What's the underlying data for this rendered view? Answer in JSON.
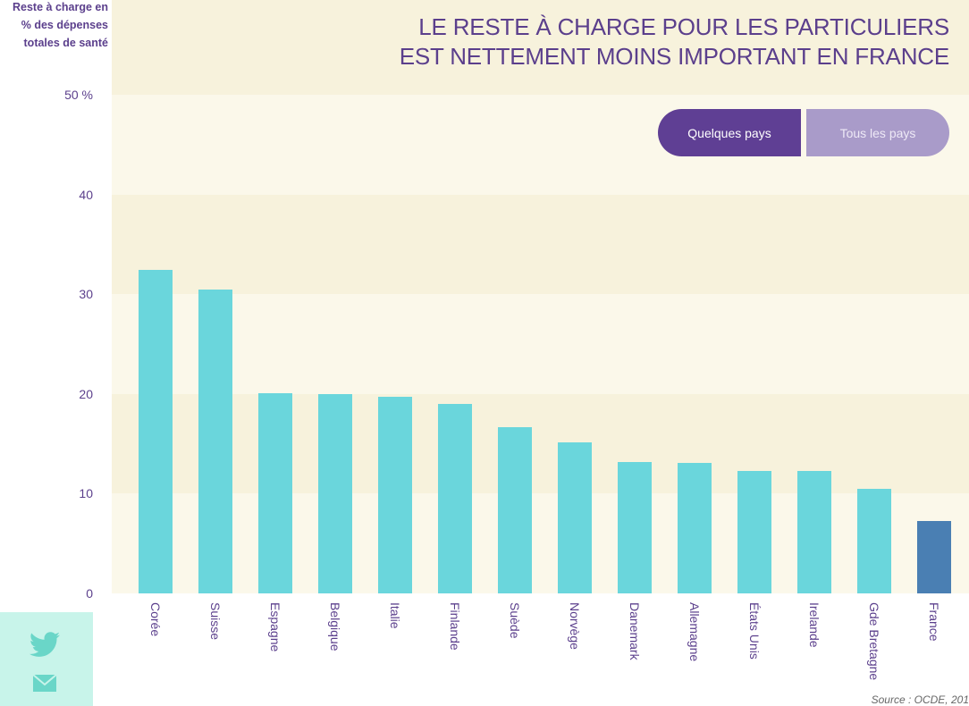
{
  "title_lines": [
    "LE RESTE À CHARGE POUR LES PARTICULIERS",
    "EST NETTEMENT MOINS IMPORTANT EN FRANCE"
  ],
  "buttons": {
    "some": "Quelques pays",
    "all": "Tous les pays"
  },
  "source": "Source : OCDE, 201",
  "colors": {
    "bar": "#6ad6dc",
    "highlight": "#4a7fb3",
    "accent": "#5b3f8c"
  },
  "icons": [
    "twitter-icon",
    "mail-icon"
  ],
  "chart_data": {
    "type": "bar",
    "ylabel_lines": [
      "Reste à charge en",
      "% des dépenses",
      "totales de santé"
    ],
    "ylim": [
      0,
      50
    ],
    "yticks": [
      0,
      10,
      20,
      30,
      40,
      50
    ],
    "ytick_labels": [
      "0",
      "10",
      "20",
      "30",
      "40",
      "50 %"
    ],
    "categories": [
      "Corée",
      "Suisse",
      "Espagne",
      "Belgique",
      "Italie",
      "Finlande",
      "Suède",
      "Norvège",
      "Danemark",
      "Allemagne",
      "États Unis",
      "Irelande",
      "Gde Bretagne",
      "France"
    ],
    "values": [
      32.4,
      30.5,
      20.1,
      20.0,
      19.7,
      19.0,
      16.7,
      15.1,
      13.2,
      13.1,
      12.3,
      12.3,
      10.5,
      7.3
    ],
    "highlight": "France",
    "grid": false,
    "legend": "none"
  }
}
